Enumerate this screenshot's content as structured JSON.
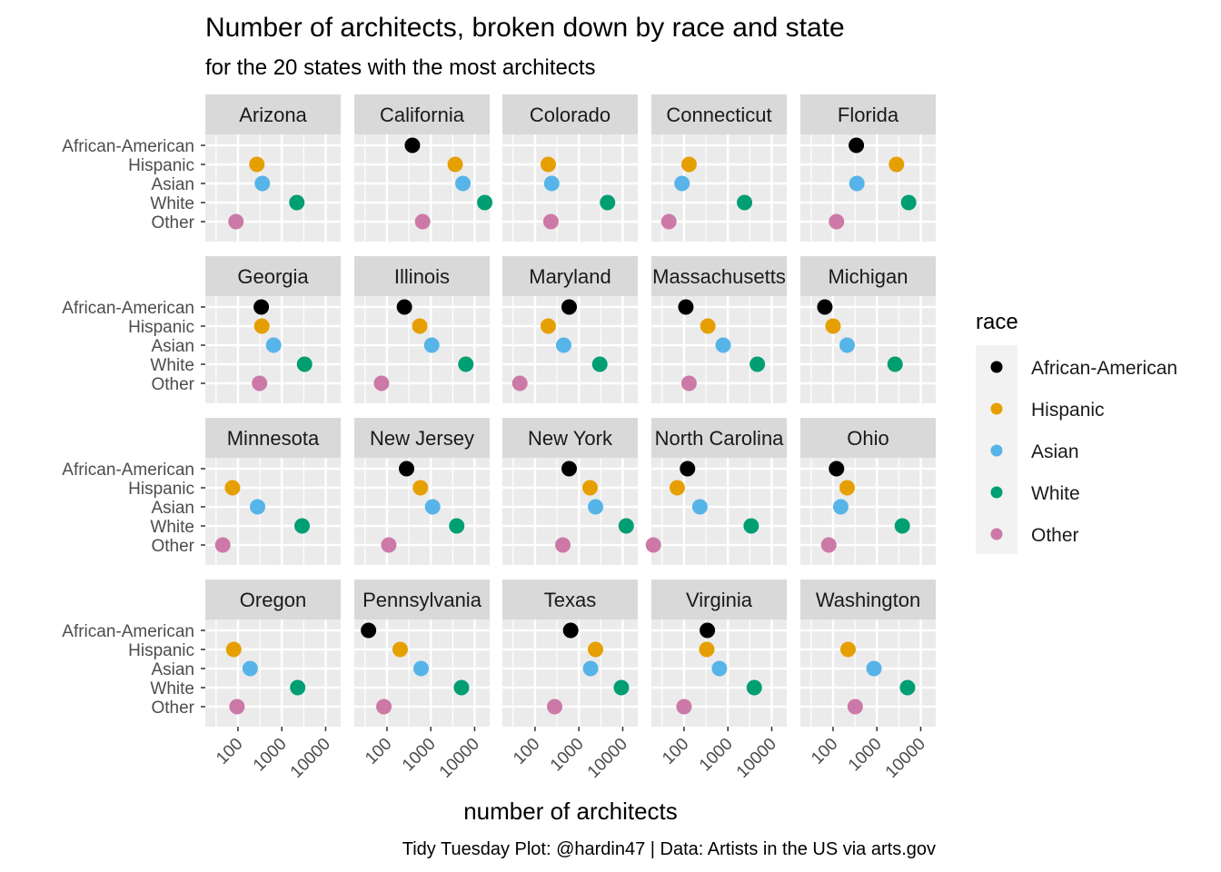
{
  "chart_data": {
    "type": "scatter",
    "title": "Number of architects, broken down by race and state",
    "subtitle": "for the 20 states with the most architects",
    "caption": "Tidy Tuesday Plot: @hardin47 | Data: Artists in the US via arts.gov",
    "xlabel": "number of architects",
    "ylabel": "",
    "x_scale": "log10",
    "xlim": [
      18,
      22000
    ],
    "x_ticks": [
      100,
      1000,
      10000
    ],
    "x_tick_labels": [
      "100",
      "1000",
      "10000"
    ],
    "y_categories": [
      "African-American",
      "Hispanic",
      "Asian",
      "White",
      "Other"
    ],
    "legend": {
      "title": "race",
      "placement": "right",
      "entries": [
        "African-American",
        "Hispanic",
        "Asian",
        "White",
        "Other"
      ]
    },
    "colors": {
      "African-American": "#000000",
      "Hispanic": "#E69F00",
      "Asian": "#56B4E9",
      "White": "#009E73",
      "Other": "#CC79A7"
    },
    "grid": true,
    "facets": [
      {
        "state": "Arizona",
        "values": {
          "Hispanic": 270,
          "Asian": 360,
          "White": 2200,
          "Other": 90
        }
      },
      {
        "state": "California",
        "values": {
          "African-American": 380,
          "Hispanic": 3600,
          "Asian": 5400,
          "White": 17000,
          "Other": 650
        }
      },
      {
        "state": "Colorado",
        "values": {
          "Hispanic": 200,
          "Asian": 240,
          "White": 4500,
          "Other": 230
        }
      },
      {
        "state": "Connecticut",
        "values": {
          "Hispanic": 130,
          "Asian": 90,
          "White": 2400,
          "Other": 45
        }
      },
      {
        "state": "Florida",
        "values": {
          "African-American": 340,
          "Hispanic": 2800,
          "Asian": 350,
          "White": 5300,
          "Other": 120
        }
      },
      {
        "state": "Georgia",
        "values": {
          "African-American": 340,
          "Hispanic": 350,
          "Asian": 650,
          "White": 3300,
          "Other": 310
        }
      },
      {
        "state": "Illinois",
        "values": {
          "African-American": 250,
          "Hispanic": 560,
          "Asian": 1050,
          "White": 6300,
          "Other": 75
        }
      },
      {
        "state": "Maryland",
        "values": {
          "African-American": 600,
          "Hispanic": 200,
          "Asian": 450,
          "White": 3000,
          "Other": 45
        }
      },
      {
        "state": "Massachusetts",
        "values": {
          "African-American": 110,
          "Hispanic": 350,
          "Asian": 780,
          "White": 4700,
          "Other": 130
        }
      },
      {
        "state": "Michigan",
        "values": {
          "African-American": 65,
          "Hispanic": 100,
          "Asian": 210,
          "White": 2600
        }
      },
      {
        "state": "Minnesota",
        "values": {
          "Hispanic": 75,
          "Asian": 280,
          "White": 2900,
          "Other": 45
        }
      },
      {
        "state": "New Jersey",
        "values": {
          "African-American": 280,
          "Hispanic": 580,
          "Asian": 1100,
          "White": 3900,
          "Other": 110
        }
      },
      {
        "state": "New York",
        "values": {
          "African-American": 600,
          "Hispanic": 1800,
          "Asian": 2400,
          "White": 12000,
          "Other": 430
        }
      },
      {
        "state": "North Carolina",
        "values": {
          "African-American": 120,
          "Hispanic": 70,
          "Asian": 230,
          "White": 3400,
          "Other": 20
        }
      },
      {
        "state": "Ohio",
        "values": {
          "African-American": 120,
          "Hispanic": 210,
          "Asian": 150,
          "White": 3800,
          "Other": 80
        }
      },
      {
        "state": "Oregon",
        "values": {
          "Hispanic": 80,
          "Asian": 190,
          "White": 2300,
          "Other": 95
        }
      },
      {
        "state": "Pennsylvania",
        "values": {
          "African-American": 38,
          "Hispanic": 200,
          "Asian": 600,
          "White": 5000,
          "Other": 85
        }
      },
      {
        "state": "Texas",
        "values": {
          "African-American": 650,
          "Hispanic": 2400,
          "Asian": 1850,
          "White": 9300,
          "Other": 280
        }
      },
      {
        "state": "Virginia",
        "values": {
          "African-American": 340,
          "Hispanic": 330,
          "Asian": 640,
          "White": 4000,
          "Other": 100
        }
      },
      {
        "state": "Washington",
        "values": {
          "Hispanic": 220,
          "Asian": 860,
          "White": 5000,
          "Other": 320
        }
      }
    ]
  }
}
